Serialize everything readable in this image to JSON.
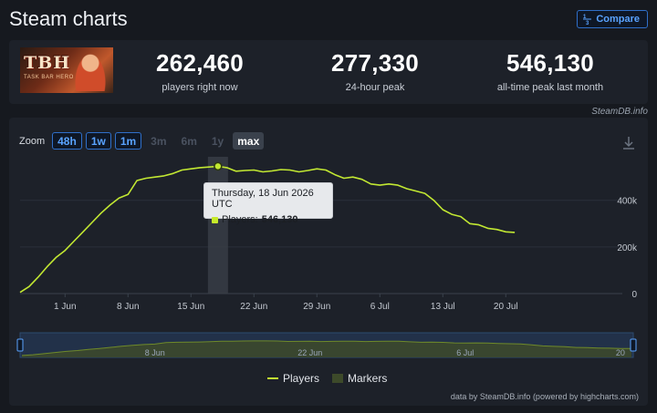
{
  "header": {
    "title": "Steam charts",
    "compare_label": "Compare"
  },
  "game": {
    "logo_text": "TBH",
    "logo_subtitle": "TASK BAR HERO"
  },
  "stats": [
    {
      "value": "262,460",
      "label": "players right now"
    },
    {
      "value": "277,330",
      "label": "24-hour peak"
    },
    {
      "value": "546,130",
      "label": "all-time peak last month"
    }
  ],
  "steamdb_link": "SteamDB.info",
  "zoom": {
    "label": "Zoom",
    "buttons": [
      "48h",
      "1w",
      "1m",
      "3m",
      "6m",
      "1y",
      "max"
    ],
    "enabled": [
      "48h",
      "1w",
      "1m"
    ],
    "selected": "max"
  },
  "tooltip": {
    "date": "Thursday, 18 Jun 2026 UTC",
    "series": "Players:",
    "value": "546,130"
  },
  "legend": {
    "players": "Players",
    "markers": "Markers"
  },
  "credits": "data by SteamDB.info (powered by highcharts.com)",
  "colors": {
    "line": "#c2e832",
    "accent": "#5aa3ff",
    "navigator_fill": "#223149"
  },
  "chart_data": {
    "type": "line",
    "x_tick_labels": [
      "1 Jun",
      "8 Jun",
      "15 Jun",
      "22 Jun",
      "29 Jun",
      "6 Jul",
      "13 Jul",
      "20 Jul"
    ],
    "y_tick_labels": [
      "0",
      "200k",
      "400k"
    ],
    "navigator_labels": [
      "8 Jun",
      "22 Jun",
      "6 Jul",
      "20"
    ],
    "ylim": [
      0,
      575000
    ],
    "x": [
      "2026-05-27",
      "2026-05-28",
      "2026-05-29",
      "2026-05-30",
      "2026-05-31",
      "2026-06-01",
      "2026-06-02",
      "2026-06-03",
      "2026-06-04",
      "2026-06-05",
      "2026-06-06",
      "2026-06-07",
      "2026-06-08",
      "2026-06-09",
      "2026-06-10",
      "2026-06-11",
      "2026-06-12",
      "2026-06-13",
      "2026-06-14",
      "2026-06-15",
      "2026-06-16",
      "2026-06-17",
      "2026-06-18",
      "2026-06-19",
      "2026-06-20",
      "2026-06-21",
      "2026-06-22",
      "2026-06-23",
      "2026-06-24",
      "2026-06-25",
      "2026-06-26",
      "2026-06-27",
      "2026-06-28",
      "2026-06-29",
      "2026-06-30",
      "2026-07-01",
      "2026-07-02",
      "2026-07-03",
      "2026-07-04",
      "2026-07-05",
      "2026-07-06",
      "2026-07-07",
      "2026-07-08",
      "2026-07-09",
      "2026-07-10",
      "2026-07-11",
      "2026-07-12",
      "2026-07-13",
      "2026-07-14",
      "2026-07-15",
      "2026-07-16",
      "2026-07-17",
      "2026-07-18",
      "2026-07-19",
      "2026-07-20",
      "2026-07-21"
    ],
    "series": [
      {
        "name": "Players",
        "values": [
          5000,
          30000,
          70000,
          115000,
          155000,
          185000,
          225000,
          265000,
          305000,
          345000,
          380000,
          410000,
          425000,
          485000,
          495000,
          500000,
          505000,
          515000,
          530000,
          535000,
          540000,
          543000,
          546130,
          540000,
          525000,
          528000,
          530000,
          522000,
          526000,
          532000,
          530000,
          522000,
          528000,
          535000,
          530000,
          510000,
          495000,
          500000,
          490000,
          470000,
          465000,
          470000,
          465000,
          450000,
          440000,
          430000,
          400000,
          360000,
          340000,
          330000,
          300000,
          295000,
          280000,
          275000,
          265000,
          262460
        ]
      }
    ]
  }
}
